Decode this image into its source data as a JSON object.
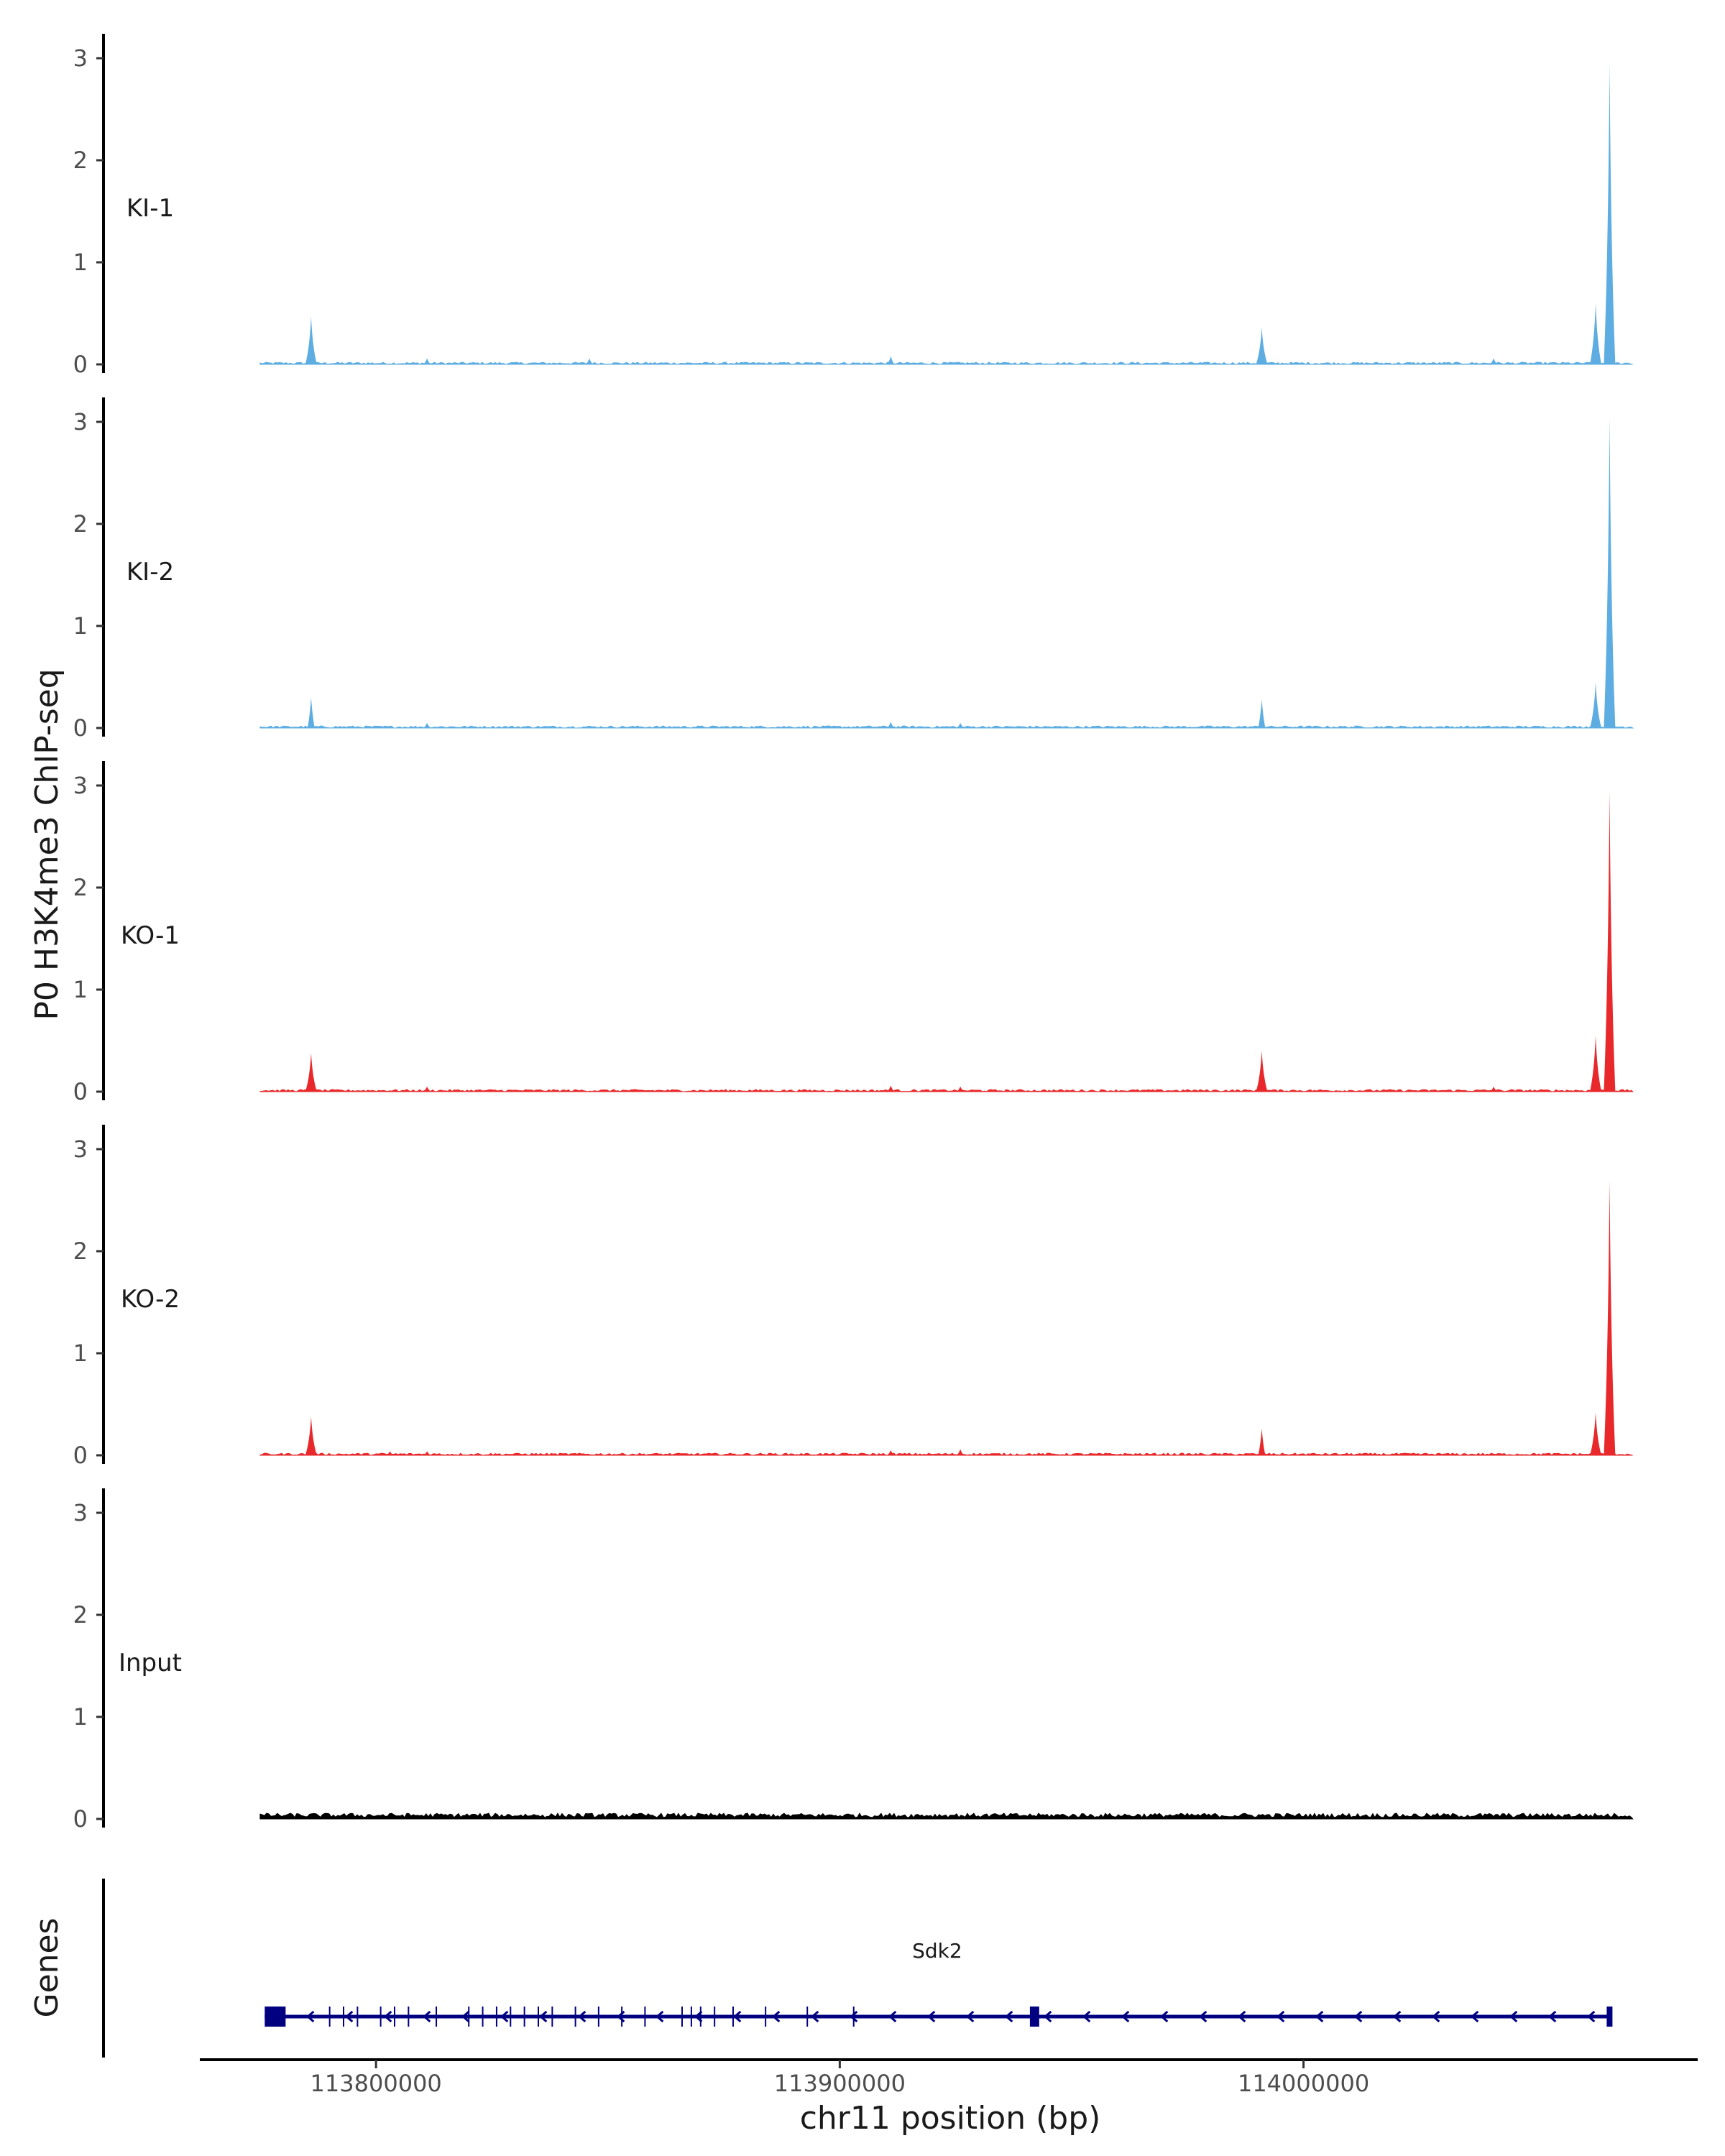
{
  "chart_data": {
    "type": "area",
    "title": "",
    "ylabel": "P0 H3K4me3 ChIP-seq",
    "xlabel": "chr11 position (bp)",
    "xlim": [
      113762000,
      114085000
    ],
    "ylim": [
      0,
      3.1
    ],
    "data_x_range": [
      113775000,
      114071000
    ],
    "yticks": [
      0,
      1,
      2,
      3
    ],
    "xticks": [
      113800000,
      113900000,
      114000000
    ],
    "xtick_labels": [
      "113800000",
      "113900000",
      "114000000"
    ],
    "grid": false,
    "tracks": [
      {
        "name": "KI-1",
        "color": "#5DADE2",
        "peaks": [
          {
            "x": 113786000,
            "y": 0.47
          },
          {
            "x": 113811000,
            "y": 0.06
          },
          {
            "x": 113846000,
            "y": 0.06
          },
          {
            "x": 113911000,
            "y": 0.08
          },
          {
            "x": 113991000,
            "y": 0.36
          },
          {
            "x": 114041000,
            "y": 0.06
          },
          {
            "x": 114063000,
            "y": 0.6
          },
          {
            "x": 114066000,
            "y": 2.95
          }
        ]
      },
      {
        "name": "KI-2",
        "color": "#5DADE2",
        "peaks": [
          {
            "x": 113786000,
            "y": 0.3
          },
          {
            "x": 113811000,
            "y": 0.05
          },
          {
            "x": 113911000,
            "y": 0.06
          },
          {
            "x": 113926000,
            "y": 0.05
          },
          {
            "x": 113991000,
            "y": 0.28
          },
          {
            "x": 114063000,
            "y": 0.45
          },
          {
            "x": 114066000,
            "y": 3.05
          }
        ]
      },
      {
        "name": "KO-1",
        "color": "#E8282B",
        "peaks": [
          {
            "x": 113786000,
            "y": 0.38
          },
          {
            "x": 113811000,
            "y": 0.05
          },
          {
            "x": 113911000,
            "y": 0.06
          },
          {
            "x": 113926000,
            "y": 0.05
          },
          {
            "x": 113991000,
            "y": 0.4
          },
          {
            "x": 114041000,
            "y": 0.05
          },
          {
            "x": 114063000,
            "y": 0.55
          },
          {
            "x": 114066000,
            "y": 2.95
          }
        ]
      },
      {
        "name": "KO-2",
        "color": "#E8282B",
        "peaks": [
          {
            "x": 113786000,
            "y": 0.38
          },
          {
            "x": 113803000,
            "y": 0.04
          },
          {
            "x": 113811000,
            "y": 0.04
          },
          {
            "x": 113911000,
            "y": 0.05
          },
          {
            "x": 113926000,
            "y": 0.06
          },
          {
            "x": 113991000,
            "y": 0.26
          },
          {
            "x": 114063000,
            "y": 0.42
          },
          {
            "x": 114066000,
            "y": 2.7
          }
        ]
      },
      {
        "name": "Input",
        "color": "#000000",
        "peaks": []
      }
    ],
    "genes_track": {
      "label": "Genes",
      "gene": {
        "name": "Sdk2",
        "start": 113776000,
        "end": 114066000,
        "strand": "-",
        "color": "#000080",
        "big_exons": [
          [
            113776000,
            113780500
          ],
          [
            113941000,
            113943000
          ]
        ],
        "exons": [
          113790000,
          113793000,
          113796000,
          113801000,
          113804000,
          113807000,
          113813000,
          113820000,
          113823000,
          113826000,
          113829000,
          113832000,
          113835000,
          113838000,
          113843000,
          113848000,
          113853000,
          113858000,
          113866000,
          113868000,
          113870000,
          113873000,
          113877000,
          113884000,
          113893000,
          113903000
        ]
      }
    }
  }
}
